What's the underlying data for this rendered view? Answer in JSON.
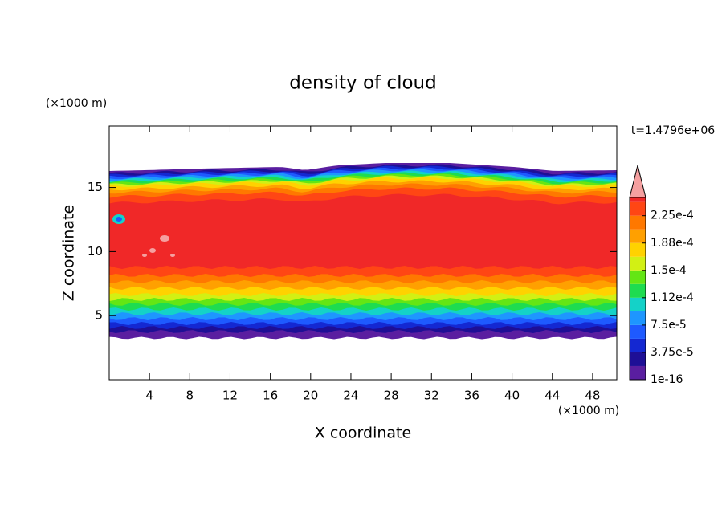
{
  "chart_data": {
    "type": "contour",
    "title": "density of cloud",
    "x_label": "X coordinate",
    "y_label": "Z coordinate",
    "x_unit": "(×1000 m)",
    "y_unit": "(×1000 m)",
    "time_label": "t=1.4796e+06",
    "xlim": [
      0,
      50.4
    ],
    "xticks": [
      4,
      8,
      12,
      16,
      20,
      24,
      28,
      32,
      36,
      40,
      44,
      48
    ],
    "ylim": [
      0,
      19.8
    ],
    "yticks": [
      5,
      10,
      15
    ],
    "colorbar": {
      "clim": [
        0,
        0.00025
      ],
      "ticks": [
        {
          "value": 1e-16,
          "label": "1e-16"
        },
        {
          "value": 3.75e-05,
          "label": "3.75e-5"
        },
        {
          "value": 7.5e-05,
          "label": "7.5e-5"
        },
        {
          "value": 0.0001125,
          "label": "1.12e-4"
        },
        {
          "value": 0.00015,
          "label": "1.5e-4"
        },
        {
          "value": 0.0001875,
          "label": "1.88e-4"
        },
        {
          "value": 0.000225,
          "label": "2.25e-4"
        }
      ],
      "colors": [
        "#5a1ea0",
        "#1e0f96",
        "#1428d2",
        "#1e5aff",
        "#1e96ff",
        "#14d2c8",
        "#1edc50",
        "#64e614",
        "#d2f014",
        "#ffd200",
        "#ffa000",
        "#ff7800",
        "#ff4614",
        "#f02828"
      ],
      "extend_color": "#f5a0a0"
    }
  }
}
